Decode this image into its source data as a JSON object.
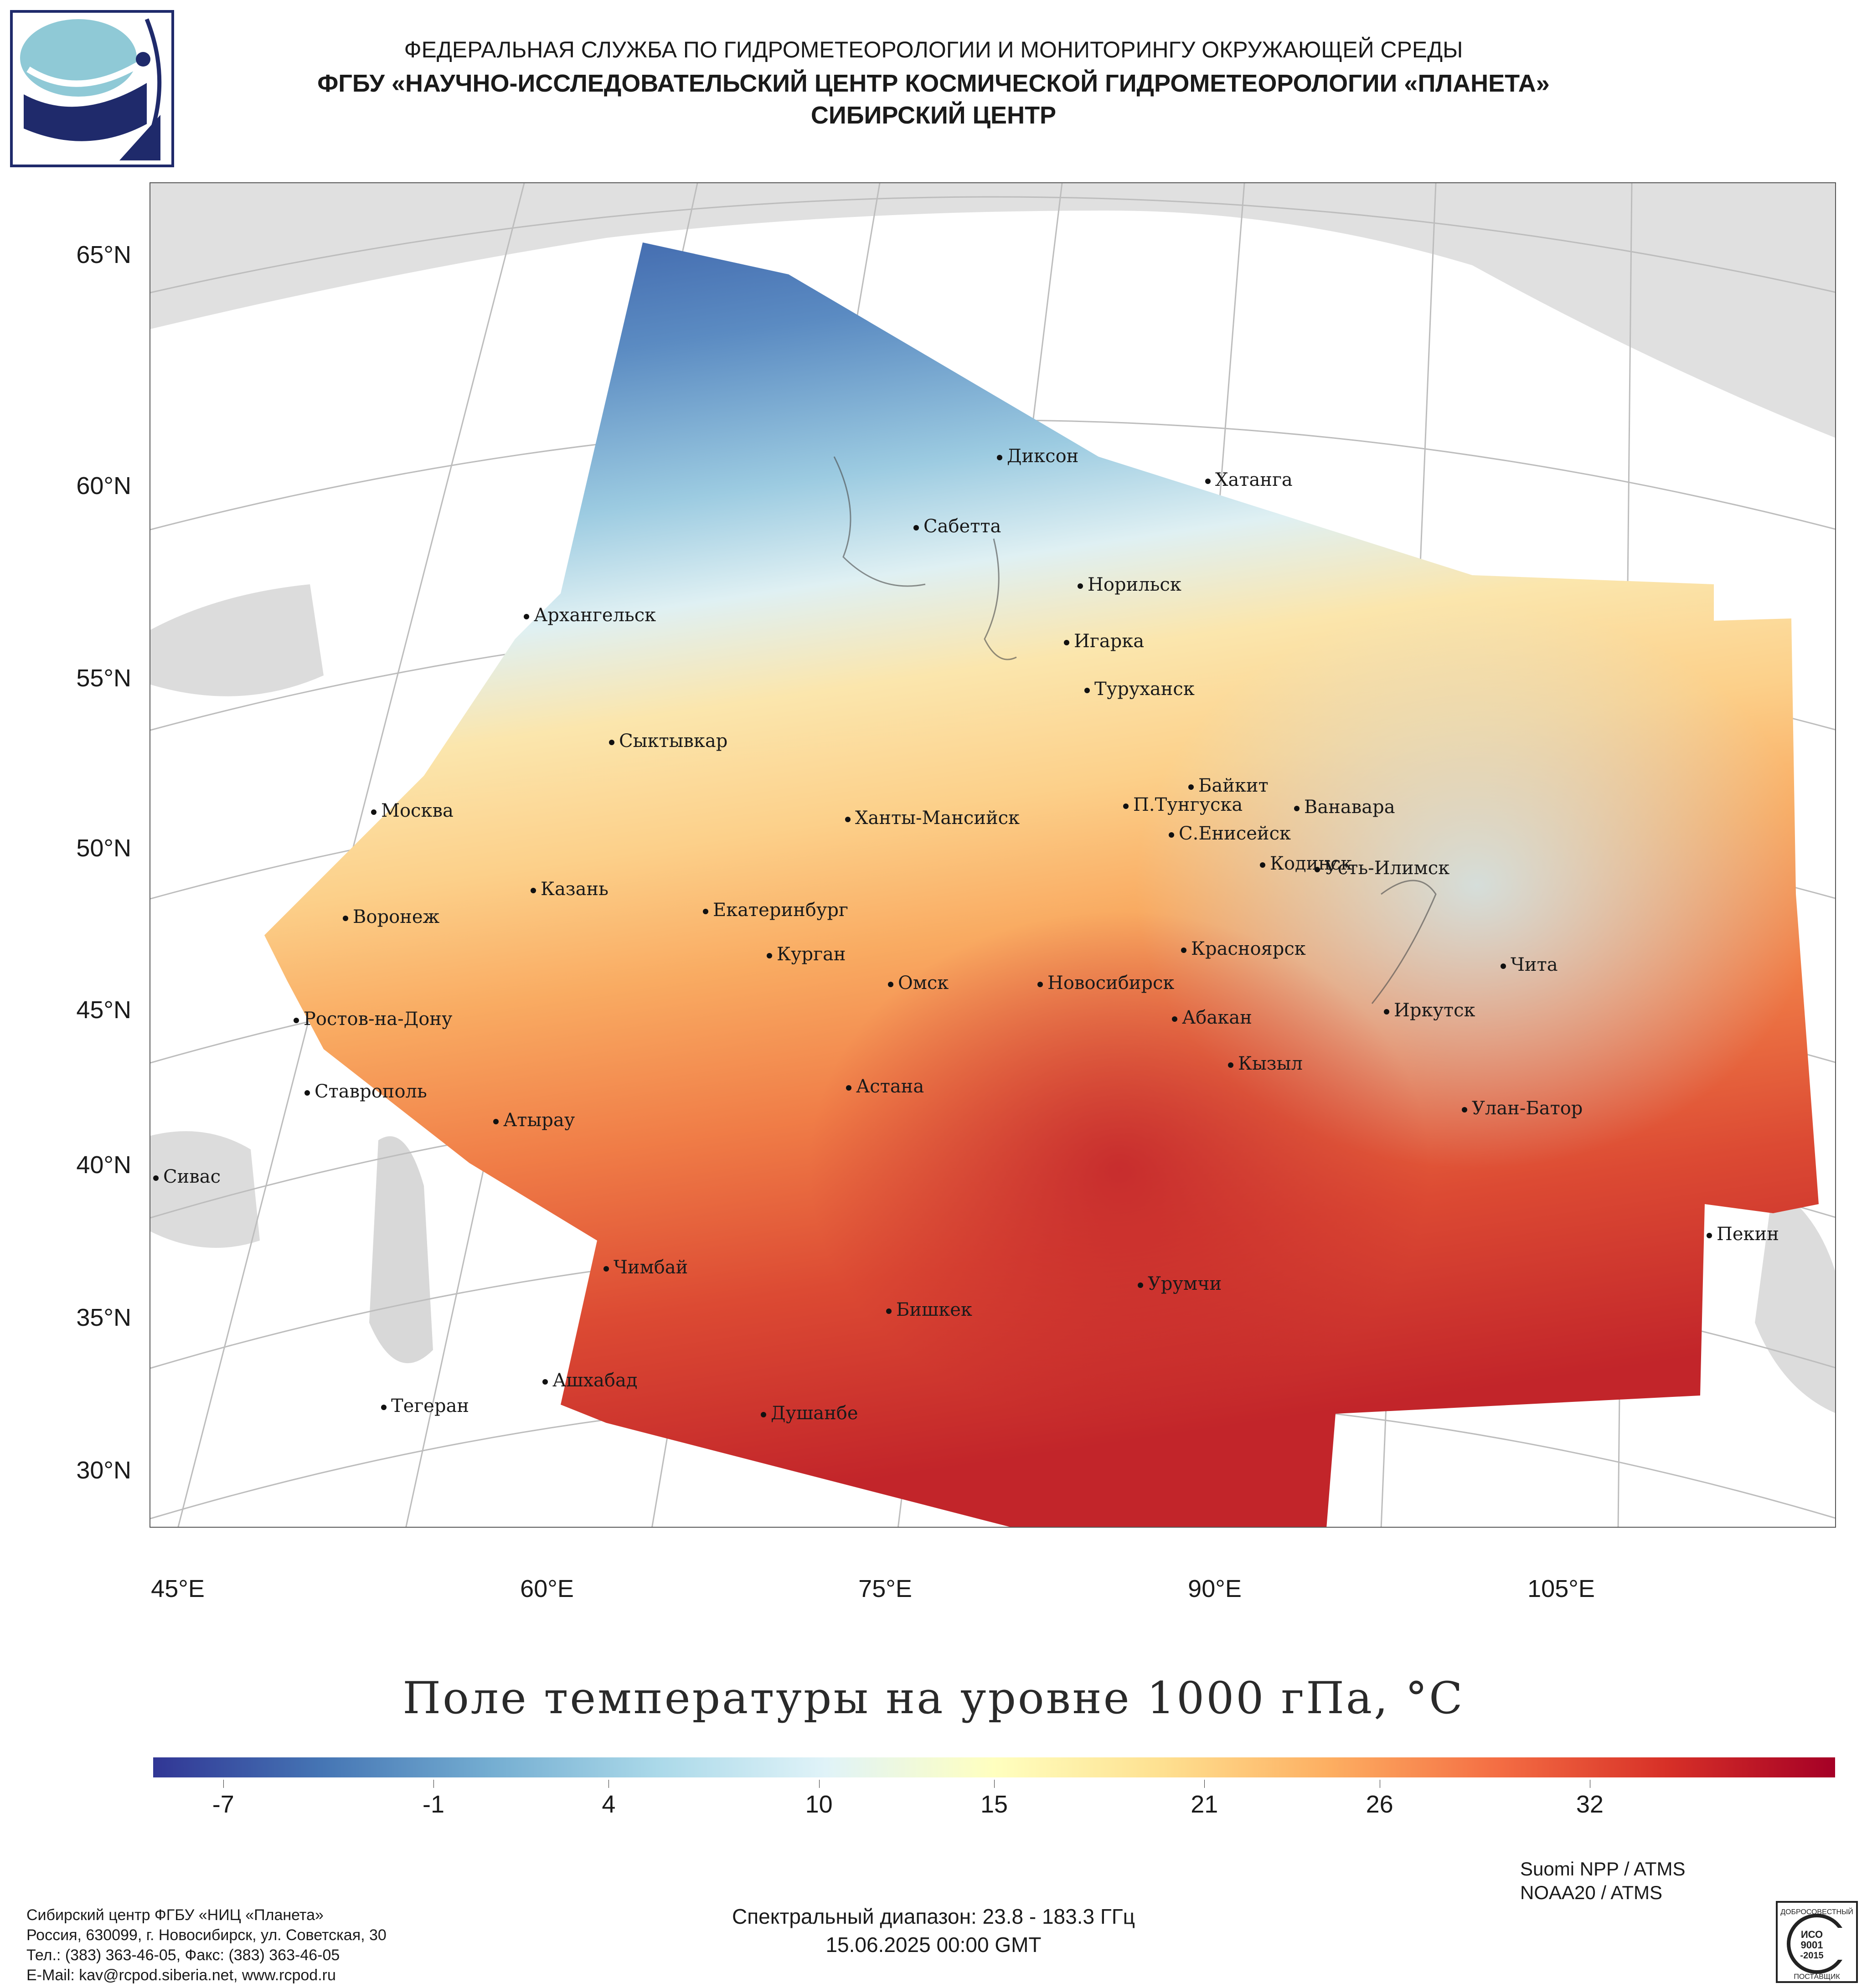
{
  "header": {
    "line1": "ФЕДЕРАЛЬНАЯ СЛУЖБА ПО ГИДРОМЕТЕОРОЛОГИИ И МОНИТОРИНГУ ОКРУЖАЮЩЕЙ СРЕДЫ",
    "line2": "ФГБУ «НАУЧНО-ИССЛЕДОВАТЕЛЬСКИЙ ЦЕНТР КОСМИЧЕСКОЙ ГИДРОМЕТЕОРОЛОГИИ «ПЛАНЕТА»",
    "line3": "СИБИРСКИЙ ЦЕНТР"
  },
  "map": {
    "latitude_labels": [
      "65°N",
      "60°N",
      "55°N",
      "50°N",
      "45°N",
      "40°N",
      "35°N",
      "30°N"
    ],
    "longitude_labels": [
      "45°E",
      "60°E",
      "75°E",
      "90°E",
      "105°E"
    ],
    "cities": [
      "Диксон",
      "Хатанга",
      "Сабетта",
      "Норильск",
      "Архангельск",
      "Игарка",
      "Туруханск",
      "Сыктывкар",
      "Байкит",
      "Москва",
      "П.Тунгуска",
      "Ванавара",
      "Ханты-Мансийск",
      "С.Енисейск",
      "Кодинск",
      "Усть-Илимск",
      "Казань",
      "Екатеринбург",
      "Воронеж",
      "Красноярск",
      "Курган",
      "Чита",
      "Омск",
      "Новосибирск",
      "Иркутск",
      "Ростов-на-Дону",
      "Абакан",
      "Кызыл",
      "Ставрополь",
      "Астана",
      "Улан-Батор",
      "Атырау",
      "Сивас",
      "Пекин",
      "Чимбай",
      "Урумчи",
      "Бишкек",
      "Ашхабад",
      "Тегеран",
      "Душанбе"
    ]
  },
  "title": "Поле температуры на уровне 1000 гПа, °C",
  "colorbar": {
    "tick_labels": [
      "-7",
      "-1",
      "4",
      "10",
      "15",
      "21",
      "26",
      "32"
    ],
    "colors": [
      "#313695",
      "#4575b4",
      "#74add1",
      "#abd9e9",
      "#e0f3f8",
      "#ffffbf",
      "#fee090",
      "#fdae61",
      "#f46d43",
      "#d73027",
      "#a50026"
    ]
  },
  "footer": {
    "org": [
      "Сибирский центр ФГБУ «НИЦ «Планета»",
      "Россия, 630099, г. Новосибирск, ул. Советская, 30",
      "Тел.: (383) 363-46-05, Факс: (383) 363-46-05",
      "E-Mail: kav@rcpod.siberia.net, www.rcpod.ru"
    ],
    "satellites": [
      "Suomi NPP / ATMS",
      "NOAA20 / ATMS"
    ],
    "spectral": "Спектральный диапазон: 23.8 - 183.3 ГГц",
    "datetime": "15.06.2025 00:00 GMT",
    "iso_badge": [
      "ДОБРОСОВЕСТНЫЙ",
      "ИСО",
      "9001",
      "-2015",
      "ПОСТАВЩИК"
    ]
  }
}
